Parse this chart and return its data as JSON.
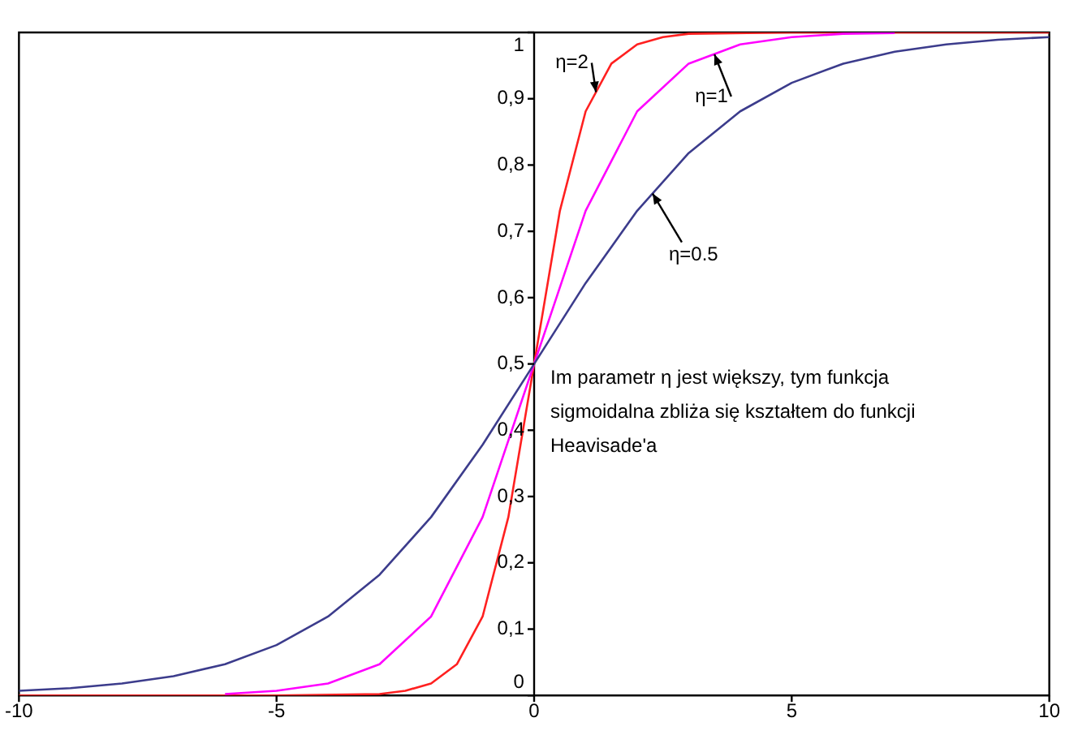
{
  "chart_data": {
    "type": "line",
    "xlim": [
      -10,
      10
    ],
    "xticks": [
      -10,
      -5,
      0,
      5,
      10
    ],
    "ylim": [
      0,
      1
    ],
    "yticks": [
      0,
      {
        "value": 0.1,
        "label": "0,1"
      },
      {
        "value": 0.2,
        "label": "0,2"
      },
      {
        "value": 0.3,
        "label": "0,3"
      },
      {
        "value": 0.4,
        "label": "0,4"
      },
      {
        "value": 0.5,
        "label": "0,5"
      },
      {
        "value": 0.6,
        "label": "0,6"
      },
      {
        "value": 0.7,
        "label": "0,7"
      },
      {
        "value": 0.8,
        "label": "0,8"
      },
      {
        "value": 0.9,
        "label": "0,9"
      },
      1
    ],
    "grid": false,
    "legend": false,
    "marker": "none",
    "line_style": "solid",
    "series": [
      {
        "color": "#3c3c8c",
        "x": [
          -10,
          -9,
          -8,
          -7,
          -6,
          -5,
          -4,
          -3,
          -2,
          -1,
          0,
          1,
          2,
          3,
          4,
          5,
          6,
          7,
          8,
          9,
          10
        ],
        "values": [
          0.007,
          0.011,
          0.018,
          0.029,
          0.047,
          0.076,
          0.119,
          0.182,
          0.269,
          0.378,
          0.5,
          0.622,
          0.731,
          0.818,
          0.881,
          0.924,
          0.953,
          0.971,
          0.982,
          0.989,
          0.993
        ]
      },
      {
        "color": "#ff00ff",
        "x": [
          -6,
          -5,
          -4,
          -3,
          -2,
          -1,
          0,
          1,
          2,
          3,
          4,
          5,
          6,
          7
        ],
        "values": [
          0.002,
          0.007,
          0.018,
          0.047,
          0.119,
          0.269,
          0.5,
          0.731,
          0.881,
          0.953,
          0.982,
          0.993,
          0.998,
          0.999
        ]
      },
      {
        "color": "#ff2020",
        "x": [
          -10,
          -5,
          -3,
          -2.5,
          -2,
          -1.5,
          -1,
          -0.5,
          0,
          0.5,
          1,
          1.5,
          2,
          2.5,
          3,
          5,
          10
        ],
        "values": [
          0,
          0,
          0.002,
          0.007,
          0.018,
          0.047,
          0.119,
          0.269,
          0.5,
          0.731,
          0.881,
          0.953,
          0.982,
          0.993,
          0.998,
          1,
          1
        ]
      }
    ],
    "annotations": [
      {
        "text": "η=2",
        "x": 1.2,
        "y": 0.91
      },
      {
        "text": "η=1",
        "x": 3.5,
        "y": 0.967
      },
      {
        "text": "η=0.5",
        "x": 2.3,
        "y": 0.757
      },
      "Im parametr η jest większy, tym funkcja sigmoidalna zbliża się kształtem do funkcji Heavisade'a"
    ]
  }
}
